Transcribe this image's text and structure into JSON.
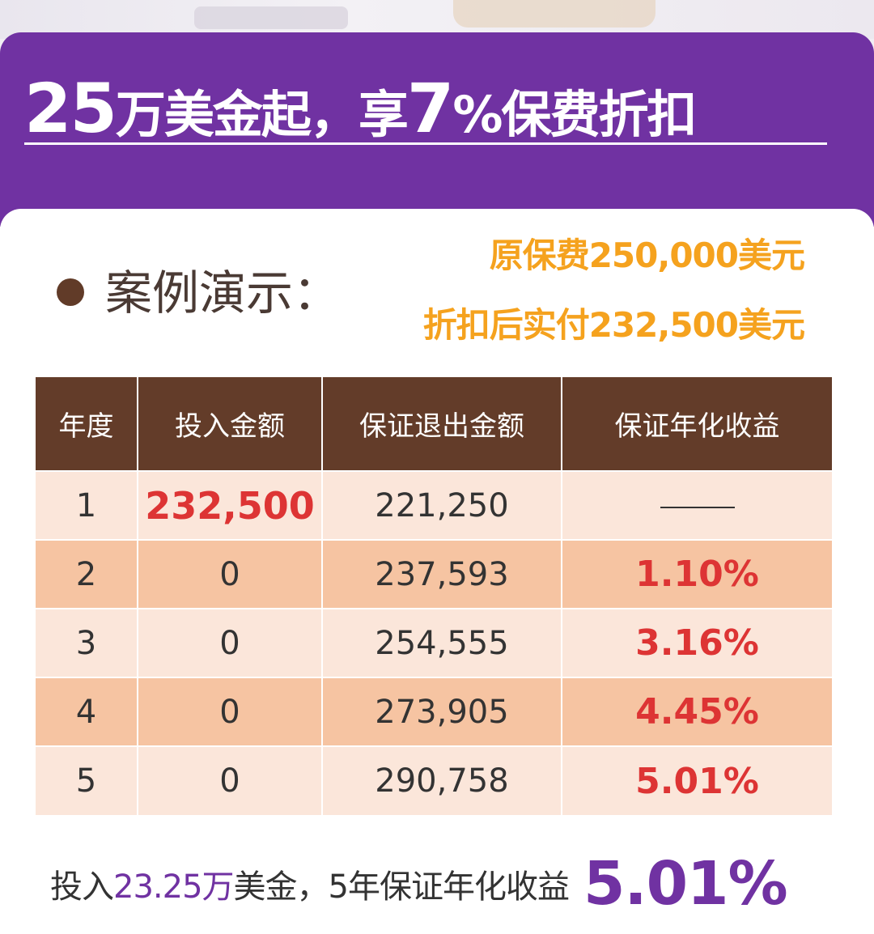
{
  "header": {
    "headline_parts": [
      "25",
      "万美金起，享",
      "7",
      "%保费折扣"
    ]
  },
  "case": {
    "title": "案例演示：",
    "original_premium": "原保费250,000美元",
    "discounted_premium": "折扣后实付232,500美元"
  },
  "table": {
    "headers": [
      "年度",
      "投入金额",
      "保证退出金额",
      "保证年化收益"
    ],
    "rows": [
      {
        "year": "1",
        "investment": "232,500",
        "exit": "221,250",
        "yield": ""
      },
      {
        "year": "2",
        "investment": "0",
        "exit": "237,593",
        "yield": "1.10%"
      },
      {
        "year": "3",
        "investment": "0",
        "exit": "254,555",
        "yield": "3.16%"
      },
      {
        "year": "4",
        "investment": "0",
        "exit": "273,905",
        "yield": "4.45%"
      },
      {
        "year": "5",
        "investment": "0",
        "exit": "290,758",
        "yield": "5.01%"
      }
    ]
  },
  "summary": {
    "prefix": "投入",
    "amount": "23.25万",
    "middle": "美金，5年保证年化收益",
    "rate": "5.01%"
  },
  "colors": {
    "purple": "#7032a2",
    "brown": "#633c29",
    "orange": "#f5a21e",
    "red": "#dd3434",
    "row_light": "#fbe6da",
    "row_dark": "#f6c4a2"
  }
}
